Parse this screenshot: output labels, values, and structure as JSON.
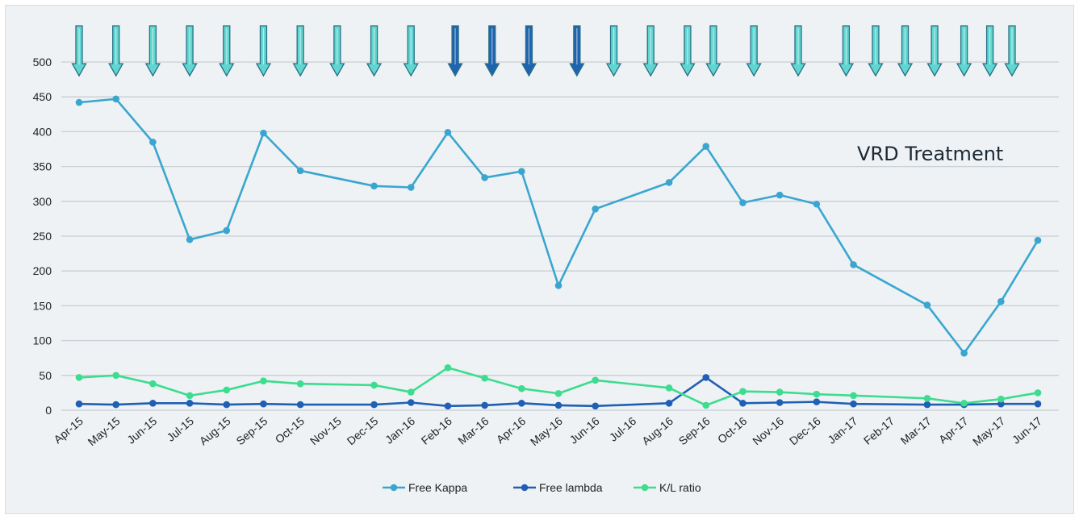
{
  "chart_data": {
    "type": "line",
    "title": "",
    "xlabel": "",
    "ylabel": "",
    "ylim": [
      0,
      500
    ],
    "y_ticks": [
      0,
      50,
      100,
      150,
      200,
      250,
      300,
      350,
      400,
      450,
      500
    ],
    "grid": true,
    "legend_position": "bottom-center",
    "categories": [
      "Apr-15",
      "May-15",
      "Jun-15",
      "Jul-15",
      "Aug-15",
      "Sep-15",
      "Oct-15",
      "Nov-15",
      "Dec-15",
      "Jan-16",
      "Feb-16",
      "Mar-16",
      "Apr-16",
      "May-16",
      "Jun-16",
      "Jul-16",
      "Aug-16",
      "Sep-16",
      "Oct-16",
      "Nov-16",
      "Dec-16",
      "Jan-17",
      "Feb-17",
      "Mar-17",
      "Apr-17",
      "May-17",
      "Jun-17"
    ],
    "series": [
      {
        "name": "Free Kappa",
        "color": "#3aa6cf",
        "points": [
          {
            "x": 0,
            "y": 442
          },
          {
            "x": 1,
            "y": 447
          },
          {
            "x": 2,
            "y": 385
          },
          {
            "x": 3,
            "y": 245
          },
          {
            "x": 4,
            "y": 258
          },
          {
            "x": 5,
            "y": 398
          },
          {
            "x": 6,
            "y": 344
          },
          {
            "x": 8,
            "y": 322
          },
          {
            "x": 9,
            "y": 320
          },
          {
            "x": 10,
            "y": 399
          },
          {
            "x": 11,
            "y": 334
          },
          {
            "x": 12,
            "y": 343
          },
          {
            "x": 13,
            "y": 179
          },
          {
            "x": 14,
            "y": 289
          },
          {
            "x": 16,
            "y": 327
          },
          {
            "x": 17,
            "y": 379
          },
          {
            "x": 18,
            "y": 298
          },
          {
            "x": 19,
            "y": 309
          },
          {
            "x": 20,
            "y": 296
          },
          {
            "x": 21,
            "y": 209
          },
          {
            "x": 23,
            "y": 151
          },
          {
            "x": 24,
            "y": 82
          },
          {
            "x": 25,
            "y": 156
          },
          {
            "x": 26,
            "y": 244
          }
        ]
      },
      {
        "name": "Free lambda",
        "color": "#1f5fb4",
        "points": [
          {
            "x": 0,
            "y": 9
          },
          {
            "x": 1,
            "y": 8
          },
          {
            "x": 2,
            "y": 10
          },
          {
            "x": 3,
            "y": 10
          },
          {
            "x": 4,
            "y": 8
          },
          {
            "x": 5,
            "y": 9
          },
          {
            "x": 6,
            "y": 8
          },
          {
            "x": 8,
            "y": 8
          },
          {
            "x": 9,
            "y": 11
          },
          {
            "x": 10,
            "y": 6
          },
          {
            "x": 11,
            "y": 7
          },
          {
            "x": 12,
            "y": 10
          },
          {
            "x": 13,
            "y": 7
          },
          {
            "x": 14,
            "y": 6
          },
          {
            "x": 16,
            "y": 10
          },
          {
            "x": 17,
            "y": 47
          },
          {
            "x": 18,
            "y": 10
          },
          {
            "x": 19,
            "y": 11
          },
          {
            "x": 20,
            "y": 12
          },
          {
            "x": 21,
            "y": 9
          },
          {
            "x": 23,
            "y": 8
          },
          {
            "x": 24,
            "y": 8
          },
          {
            "x": 25,
            "y": 9
          },
          {
            "x": 26,
            "y": 9
          }
        ]
      },
      {
        "name": "K/L ratio",
        "color": "#3ddc8e",
        "points": [
          {
            "x": 0,
            "y": 47
          },
          {
            "x": 1,
            "y": 50
          },
          {
            "x": 2,
            "y": 38
          },
          {
            "x": 3,
            "y": 21
          },
          {
            "x": 4,
            "y": 29
          },
          {
            "x": 5,
            "y": 42
          },
          {
            "x": 6,
            "y": 38
          },
          {
            "x": 8,
            "y": 36
          },
          {
            "x": 9,
            "y": 26
          },
          {
            "x": 10,
            "y": 61
          },
          {
            "x": 11,
            "y": 46
          },
          {
            "x": 12,
            "y": 31
          },
          {
            "x": 13,
            "y": 24
          },
          {
            "x": 14,
            "y": 43
          },
          {
            "x": 16,
            "y": 32
          },
          {
            "x": 17,
            "y": 7
          },
          {
            "x": 18,
            "y": 27
          },
          {
            "x": 19,
            "y": 26
          },
          {
            "x": 20,
            "y": 23
          },
          {
            "x": 21,
            "y": 21
          },
          {
            "x": 23,
            "y": 17
          },
          {
            "x": 24,
            "y": 10
          },
          {
            "x": 25,
            "y": 16
          },
          {
            "x": 26,
            "y": 25
          }
        ]
      }
    ],
    "treatment_markers": [
      {
        "x": 0,
        "shade": "light"
      },
      {
        "x": 1,
        "shade": "light"
      },
      {
        "x": 2,
        "shade": "light"
      },
      {
        "x": 3,
        "shade": "light"
      },
      {
        "x": 4,
        "shade": "light"
      },
      {
        "x": 5,
        "shade": "light"
      },
      {
        "x": 6,
        "shade": "light"
      },
      {
        "x": 7,
        "shade": "light"
      },
      {
        "x": 8,
        "shade": "light"
      },
      {
        "x": 9,
        "shade": "light"
      },
      {
        "x": 10.2,
        "shade": "dark"
      },
      {
        "x": 11.2,
        "shade": "dark"
      },
      {
        "x": 12.2,
        "shade": "dark"
      },
      {
        "x": 13.5,
        "shade": "dark"
      },
      {
        "x": 14.5,
        "shade": "light"
      },
      {
        "x": 15.5,
        "shade": "light"
      },
      {
        "x": 16.5,
        "shade": "light"
      },
      {
        "x": 17.2,
        "shade": "light"
      },
      {
        "x": 18.3,
        "shade": "light"
      },
      {
        "x": 19.5,
        "shade": "light"
      },
      {
        "x": 20.8,
        "shade": "light"
      },
      {
        "x": 21.6,
        "shade": "light"
      },
      {
        "x": 22.4,
        "shade": "light"
      },
      {
        "x": 23.2,
        "shade": "light"
      },
      {
        "x": 24,
        "shade": "light"
      },
      {
        "x": 24.7,
        "shade": "light"
      },
      {
        "x": 25.3,
        "shade": "light"
      }
    ],
    "marker_colors": {
      "light": "#5fd6cf",
      "dark": "#1f64b0"
    },
    "annotation": "VRD Treatment"
  }
}
